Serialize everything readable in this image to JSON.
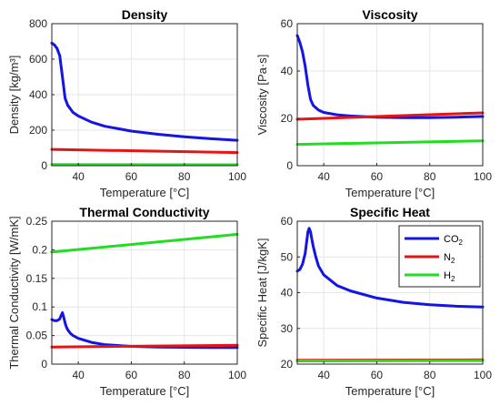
{
  "chart_data": [
    {
      "type": "line",
      "title": "Density",
      "xlabel": "Temperature [°C]",
      "ylabel": "Density [kg/m³]",
      "xlim": [
        30,
        100
      ],
      "ylim": [
        0,
        800
      ],
      "xticks": [
        40,
        60,
        80,
        100
      ],
      "yticks": [
        0,
        200,
        400,
        600,
        800
      ],
      "xtick_labels": [
        "40",
        "60",
        "80",
        "100"
      ],
      "ytick_labels": [
        "0",
        "200",
        "400",
        "600",
        "800"
      ],
      "grid": true,
      "series": [
        {
          "name": "CO2",
          "color": "#1414e6",
          "x": [
            30,
            31,
            32,
            33,
            34,
            35,
            36,
            38,
            40,
            45,
            50,
            60,
            70,
            80,
            90,
            100
          ],
          "y": [
            690,
            680,
            660,
            620,
            500,
            380,
            340,
            300,
            280,
            245,
            222,
            195,
            177,
            163,
            152,
            143
          ]
        },
        {
          "name": "N2",
          "color": "#e61414",
          "x": [
            30,
            100
          ],
          "y": [
            92,
            74
          ]
        },
        {
          "name": "H2",
          "color": "#22dd22",
          "x": [
            30,
            100
          ],
          "y": [
            6,
            5
          ]
        }
      ]
    },
    {
      "type": "line",
      "title": "Viscosity",
      "xlabel": "Temperature [°C]",
      "ylabel": "Viscosity [Pa·s]",
      "xlim": [
        30,
        100
      ],
      "ylim": [
        0,
        60
      ],
      "xticks": [
        40,
        60,
        80,
        100
      ],
      "yticks": [
        0,
        20,
        40,
        60
      ],
      "xtick_labels": [
        "40",
        "60",
        "80",
        "100"
      ],
      "ytick_labels": [
        "0",
        "20",
        "40",
        "60"
      ],
      "grid": true,
      "series": [
        {
          "name": "CO2",
          "color": "#1414e6",
          "x": [
            30,
            31,
            32,
            33,
            34,
            35,
            36,
            38,
            40,
            45,
            50,
            60,
            70,
            80,
            90,
            100
          ],
          "y": [
            55,
            52,
            48,
            42,
            34,
            28,
            25.5,
            23.5,
            22.5,
            21.5,
            21,
            20.5,
            20.3,
            20.3,
            20.5,
            20.8
          ]
        },
        {
          "name": "N2",
          "color": "#e61414",
          "x": [
            30,
            100
          ],
          "y": [
            19.6,
            22.3
          ]
        },
        {
          "name": "H2",
          "color": "#22dd22",
          "x": [
            30,
            100
          ],
          "y": [
            9,
            10.5
          ]
        }
      ]
    },
    {
      "type": "line",
      "title": "Thermal Conductivity",
      "xlabel": "Temperature [°C]",
      "ylabel": "Thermal Conductivity [W/mK]",
      "xlim": [
        30,
        100
      ],
      "ylim": [
        0,
        0.25
      ],
      "xticks": [
        40,
        60,
        80,
        100
      ],
      "yticks": [
        0,
        0.05,
        0.1,
        0.15,
        0.2,
        0.25
      ],
      "xtick_labels": [
        "40",
        "60",
        "80",
        "100"
      ],
      "ytick_labels": [
        "0",
        "0.05",
        "0.1",
        "0.15",
        "0.2",
        "0.25"
      ],
      "grid": true,
      "series": [
        {
          "name": "CO2",
          "color": "#1414e6",
          "x": [
            30,
            31,
            32,
            33,
            33.5,
            34,
            34.5,
            35,
            35.5,
            36,
            37,
            38,
            40,
            45,
            50,
            60,
            70,
            80,
            90,
            100
          ],
          "y": [
            0.078,
            0.076,
            0.076,
            0.079,
            0.085,
            0.09,
            0.082,
            0.072,
            0.065,
            0.06,
            0.054,
            0.05,
            0.045,
            0.038,
            0.034,
            0.031,
            0.03,
            0.0295,
            0.029,
            0.029
          ]
        },
        {
          "name": "N2",
          "color": "#e61414",
          "x": [
            30,
            100
          ],
          "y": [
            0.03,
            0.033
          ]
        },
        {
          "name": "H2",
          "color": "#22dd22",
          "x": [
            30,
            100
          ],
          "y": [
            0.196,
            0.227
          ]
        }
      ]
    },
    {
      "type": "line",
      "title": "Specific Heat",
      "xlabel": "Temperature [°C]",
      "ylabel": "Specific Heat [J/kgK]",
      "xlim": [
        30,
        100
      ],
      "ylim": [
        20,
        60
      ],
      "xticks": [
        40,
        60,
        80,
        100
      ],
      "yticks": [
        20,
        30,
        40,
        50,
        60
      ],
      "xtick_labels": [
        "40",
        "60",
        "80",
        "100"
      ],
      "ytick_labels": [
        "20",
        "30",
        "40",
        "50",
        "60"
      ],
      "grid": true,
      "legend": {
        "position": "top-right",
        "entries": [
          "CO",
          "N",
          "H"
        ],
        "subscripts": [
          "2",
          "2",
          "2"
        ]
      },
      "series": [
        {
          "name": "CO2",
          "color": "#1414e6",
          "x": [
            30,
            31,
            32,
            33,
            33.5,
            34,
            34.5,
            35,
            35.5,
            36,
            37,
            38,
            40,
            45,
            50,
            60,
            70,
            80,
            90,
            100
          ],
          "y": [
            46,
            46.5,
            48,
            51,
            54,
            57,
            58,
            57,
            55,
            53,
            50,
            47.5,
            45,
            42,
            40.5,
            38.5,
            37.3,
            36.6,
            36.2,
            36
          ]
        },
        {
          "name": "N2",
          "color": "#e61414",
          "x": [
            30,
            100
          ],
          "y": [
            21.1,
            21.2
          ]
        },
        {
          "name": "H2",
          "color": "#22dd22",
          "x": [
            30,
            100
          ],
          "y": [
            20.9,
            21.0
          ]
        }
      ]
    }
  ]
}
